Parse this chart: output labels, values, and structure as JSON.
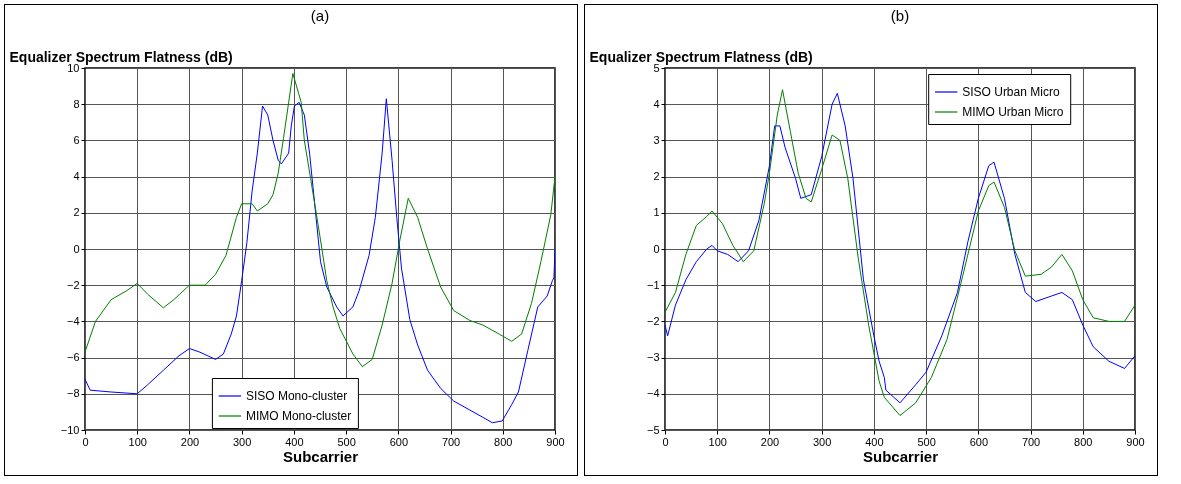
{
  "chart_data": [
    {
      "type": "line",
      "title": "(a)",
      "xlabel": "Subcarrier",
      "ylabel": "Equalizer Spectrum Flatness (dB)",
      "xlim": [
        0,
        900
      ],
      "xticks": [
        0,
        100,
        200,
        300,
        400,
        500,
        600,
        700,
        800,
        900
      ],
      "ylim": [
        -10,
        10
      ],
      "yticks": [
        -10,
        -8,
        -6,
        -4,
        -2,
        0,
        2,
        4,
        6,
        8,
        10
      ],
      "grid": true,
      "legend": "bottom",
      "line_style": "solid",
      "marker": "none",
      "series": [
        {
          "name": "SISO Mono-cluster",
          "color": "#0000ff",
          "x": [
            0,
            10,
            50,
            100,
            120,
            150,
            180,
            200,
            220,
            250,
            265,
            280,
            290,
            300,
            310,
            320,
            330,
            340,
            350,
            360,
            370,
            376,
            390,
            395,
            401,
            410,
            420,
            430,
            451,
            463,
            482,
            494,
            513,
            525,
            544,
            556,
            569,
            577,
            588,
            597,
            606,
            622,
            637,
            656,
            681,
            706,
            737,
            762,
            780,
            799,
            817,
            830,
            848,
            867,
            885,
            895,
            898,
            900
          ],
          "values": [
            -7.2,
            -7.8,
            -7.9,
            -8.0,
            -7.5,
            -6.7,
            -5.9,
            -5.5,
            -5.7,
            -6.1,
            -5.8,
            -4.7,
            -3.7,
            -1.75,
            0.35,
            3.2,
            5.3,
            7.9,
            7.4,
            6,
            4.9,
            4.7,
            5.3,
            6.8,
            7.9,
            8.1,
            7.4,
            5.3,
            -0.7,
            -2.1,
            -3.2,
            -3.7,
            -3.2,
            -2.3,
            -0.35,
            1.75,
            5.3,
            8.3,
            4.9,
            1.75,
            -1.05,
            -3.9,
            -5.3,
            -6.7,
            -7.7,
            -8.4,
            -8.9,
            -9.3,
            -9.6,
            -9.5,
            -8.6,
            -7.9,
            -5.6,
            -3.2,
            -2.6,
            -1.75,
            -1.6,
            0
          ]
        },
        {
          "name": "MIMO Mono-cluster",
          "color": "#008000",
          "x": [
            0,
            20,
            50,
            80,
            100,
            120,
            150,
            170,
            200,
            230,
            250,
            270,
            290,
            300,
            320,
            330,
            350,
            360,
            370,
            380,
            390,
            398,
            414,
            420,
            432,
            451,
            463,
            475,
            488,
            513,
            531,
            550,
            569,
            588,
            603,
            619,
            637,
            656,
            681,
            706,
            737,
            762,
            793,
            817,
            836,
            855,
            873,
            892,
            900
          ],
          "values": [
            -5.7,
            -4,
            -2.8,
            -2.3,
            -1.9,
            -2.5,
            -3.25,
            -2.8,
            -2,
            -2,
            -1.4,
            -0.35,
            1.75,
            2.5,
            2.5,
            2.1,
            2.5,
            3,
            4.2,
            6.1,
            8.1,
            9.7,
            8.1,
            6,
            3.9,
            0.5,
            -1.75,
            -3.2,
            -4.4,
            -5.8,
            -6.5,
            -6.1,
            -4.2,
            -1.9,
            0.5,
            2.8,
            1.75,
            0,
            -2.1,
            -3.4,
            -3.95,
            -4.2,
            -4.7,
            -5.1,
            -4.7,
            -3,
            -0.7,
            1.9,
            4
          ]
        }
      ]
    },
    {
      "type": "line",
      "title": "(b)",
      "xlabel": "Subcarrier",
      "ylabel": "Equalizer Spectrum Flatness (dB)",
      "xlim": [
        0,
        900
      ],
      "xticks": [
        0,
        100,
        200,
        300,
        400,
        500,
        600,
        700,
        800,
        900
      ],
      "ylim": [
        -5,
        5
      ],
      "yticks": [
        -5,
        -4,
        -3,
        -2,
        -1,
        0,
        1,
        2,
        3,
        4,
        5
      ],
      "grid": true,
      "legend": "top right",
      "line_style": "solid",
      "marker": "none",
      "series": [
        {
          "name": "SISO Urban Micro",
          "color": "#0000ff",
          "x": [
            0,
            5,
            20,
            40,
            60,
            80,
            90,
            100,
            120,
            140,
            160,
            180,
            200,
            210,
            220,
            230,
            250,
            260,
            280,
            300,
            320,
            330,
            345,
            360,
            380,
            400,
            410,
            420,
            423,
            450,
            480,
            500,
            530,
            560,
            580,
            600,
            620,
            630,
            650,
            670,
            690,
            710,
            740,
            760,
            780,
            800,
            820,
            850,
            880,
            900
          ],
          "values": [
            -2.1,
            -2.4,
            -1.55,
            -0.85,
            -0.35,
            0,
            0.1,
            -0.05,
            -0.15,
            -0.35,
            -0.05,
            0.8,
            2.3,
            3.4,
            3.4,
            2.8,
            1.95,
            1.4,
            1.5,
            2.55,
            4,
            4.3,
            3.4,
            1.95,
            -0.85,
            -2.4,
            -3.1,
            -3.55,
            -3.9,
            -4.25,
            -3.75,
            -3.4,
            -2.4,
            -1.2,
            0.2,
            1.4,
            2.3,
            2.4,
            1.4,
            -0.15,
            -1.2,
            -1.45,
            -1.3,
            -1.2,
            -1.4,
            -2.1,
            -2.7,
            -3.1,
            -3.3,
            -2.95
          ]
        },
        {
          "name": "MIMO Urban Micro",
          "color": "#008000",
          "x": [
            0,
            20,
            40,
            60,
            80,
            90,
            110,
            130,
            150,
            170,
            190,
            200,
            215,
            225,
            240,
            255,
            270,
            280,
            300,
            320,
            335,
            350,
            370,
            390,
            410,
            420,
            450,
            480,
            510,
            540,
            570,
            600,
            620,
            630,
            650,
            670,
            690,
            720,
            740,
            760,
            780,
            800,
            820,
            850,
            880,
            900
          ],
          "values": [
            -1.75,
            -1.2,
            -0.15,
            0.65,
            0.9,
            1.05,
            0.7,
            0.1,
            -0.35,
            -0.05,
            1.25,
            2.1,
            3.7,
            4.4,
            3.25,
            2.1,
            1.4,
            1.3,
            2.2,
            3.15,
            3,
            1.95,
            -0.25,
            -2.1,
            -3.65,
            -4.1,
            -4.6,
            -4.25,
            -3.55,
            -2.5,
            -0.75,
            1.05,
            1.75,
            1.85,
            1.15,
            -0.05,
            -0.75,
            -0.7,
            -0.5,
            -0.15,
            -0.6,
            -1.4,
            -1.9,
            -2,
            -2,
            -1.55
          ]
        }
      ]
    }
  ]
}
